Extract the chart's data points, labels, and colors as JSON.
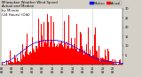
{
  "title_text": "Milwaukee Weather Wind Speed\nActual and Median\nby Minute\n(24 Hours) (Old)",
  "bar_color": "#ff0000",
  "median_color": "#0000ff",
  "legend_actual_label": "Actual",
  "legend_median_label": "Median",
  "background_color": "#d4d0c8",
  "plot_bg_color": "#ffffff",
  "n_points": 1440,
  "y_max": 30,
  "y_min": 0,
  "yticks": [
    5,
    10,
    15,
    20,
    25,
    30
  ],
  "vline_positions": [
    360,
    720,
    1080
  ],
  "title_fontsize": 2.8,
  "legend_fontsize": 2.5,
  "tick_fontsize": 2.5,
  "seed": 99
}
